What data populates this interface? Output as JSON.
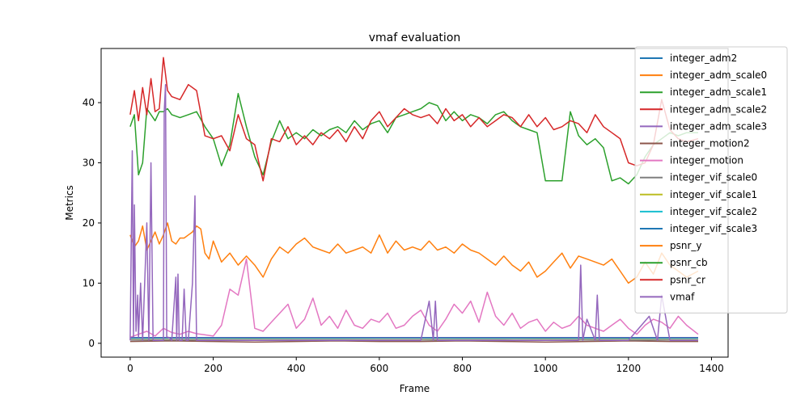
{
  "chart_data": {
    "type": "line",
    "title": "vmaf evaluation",
    "xlabel": "Frame",
    "ylabel": "Metrics",
    "xlim": [
      -70,
      1440
    ],
    "ylim": [
      -2.3,
      49.0
    ],
    "xticks": [
      0,
      200,
      400,
      600,
      800,
      1000,
      1200,
      1400
    ],
    "yticks": [
      0,
      10,
      20,
      30,
      40
    ],
    "grid": false,
    "legend_position": "top-right",
    "series": [
      {
        "name": "integer_adm2",
        "color": "#1f77b4",
        "x": [
          0,
          100,
          200,
          300,
          400,
          500,
          600,
          700,
          800,
          900,
          1000,
          1100,
          1200,
          1300,
          1368
        ],
        "y": [
          0.95,
          0.96,
          0.95,
          0.94,
          0.95,
          0.95,
          0.96,
          0.96,
          0.95,
          0.95,
          0.94,
          0.95,
          0.94,
          0.95,
          0.95
        ]
      },
      {
        "name": "integer_adm_scale0",
        "color": "#ff7f0e",
        "x": [
          0,
          100,
          200,
          300,
          400,
          500,
          600,
          700,
          800,
          900,
          1000,
          1100,
          1200,
          1300,
          1368
        ],
        "y": [
          0.9,
          0.91,
          0.9,
          0.89,
          0.9,
          0.9,
          0.91,
          0.91,
          0.9,
          0.9,
          0.89,
          0.9,
          0.89,
          0.9,
          0.9
        ]
      },
      {
        "name": "integer_adm_scale1",
        "color": "#2ca02c",
        "x": [
          0,
          100,
          200,
          300,
          400,
          500,
          600,
          700,
          800,
          900,
          1000,
          1100,
          1200,
          1300,
          1368
        ],
        "y": [
          0.92,
          0.93,
          0.92,
          0.91,
          0.92,
          0.92,
          0.93,
          0.93,
          0.92,
          0.92,
          0.91,
          0.92,
          0.91,
          0.92,
          0.92
        ]
      },
      {
        "name": "integer_adm_scale2",
        "color": "#d62728",
        "x": [
          0,
          100,
          200,
          300,
          400,
          500,
          600,
          700,
          800,
          900,
          1000,
          1100,
          1200,
          1300,
          1368
        ],
        "y": [
          0.94,
          0.95,
          0.94,
          0.93,
          0.94,
          0.94,
          0.95,
          0.95,
          0.94,
          0.94,
          0.93,
          0.94,
          0.93,
          0.94,
          0.94
        ]
      },
      {
        "name": "integer_adm_scale3",
        "color": "#9467bd",
        "x": [
          0,
          100,
          200,
          300,
          400,
          500,
          600,
          700,
          800,
          900,
          1000,
          1100,
          1200,
          1300,
          1368
        ],
        "y": [
          0.96,
          0.97,
          0.96,
          0.95,
          0.96,
          0.96,
          0.97,
          0.97,
          0.96,
          0.96,
          0.95,
          0.96,
          0.95,
          0.96,
          0.96
        ]
      },
      {
        "name": "integer_motion2",
        "color": "#8c564b",
        "x": [
          0,
          100,
          200,
          300,
          400,
          500,
          600,
          700,
          800,
          900,
          1000,
          1100,
          1200,
          1300,
          1368
        ],
        "y": [
          0.3,
          0.4,
          0.3,
          0.2,
          0.3,
          0.4,
          0.3,
          0.3,
          0.4,
          0.3,
          0.2,
          0.3,
          0.4,
          0.3,
          0.3
        ]
      },
      {
        "name": "integer_motion",
        "color": "#e377c2",
        "x": [
          0,
          20,
          40,
          60,
          80,
          100,
          120,
          140,
          160,
          180,
          200,
          220,
          240,
          260,
          280,
          300,
          320,
          340,
          360,
          380,
          400,
          420,
          440,
          460,
          480,
          500,
          520,
          540,
          560,
          580,
          600,
          620,
          640,
          660,
          680,
          700,
          720,
          740,
          760,
          780,
          800,
          820,
          840,
          860,
          880,
          900,
          920,
          940,
          960,
          980,
          1000,
          1020,
          1040,
          1060,
          1080,
          1100,
          1120,
          1140,
          1160,
          1180,
          1200,
          1220,
          1240,
          1260,
          1280,
          1300,
          1320,
          1340,
          1368
        ],
        "y": [
          1.0,
          1.5,
          2.0,
          1.2,
          2.5,
          1.8,
          1.5,
          2.0,
          1.6,
          1.4,
          1.2,
          3.0,
          9.0,
          8.0,
          14.0,
          2.5,
          2.0,
          3.5,
          5.0,
          6.5,
          2.5,
          4.0,
          7.5,
          3.0,
          4.5,
          2.5,
          5.5,
          3.0,
          2.5,
          4.0,
          3.5,
          5.0,
          2.5,
          3.0,
          4.5,
          5.5,
          3.0,
          2.0,
          4.0,
          6.5,
          5.0,
          7.0,
          3.5,
          8.5,
          4.5,
          3.0,
          5.0,
          2.5,
          3.5,
          4.0,
          2.0,
          3.5,
          2.5,
          3.0,
          4.5,
          3.0,
          2.5,
          2.0,
          3.0,
          4.0,
          2.5,
          1.5,
          3.0,
          4.0,
          3.5,
          2.5,
          4.5,
          3.0,
          1.5
        ]
      },
      {
        "name": "integer_vif_scale0",
        "color": "#7f7f7f",
        "x": [
          0,
          100,
          200,
          300,
          400,
          500,
          600,
          700,
          800,
          900,
          1000,
          1100,
          1200,
          1300,
          1368
        ],
        "y": [
          0.55,
          0.56,
          0.55,
          0.54,
          0.55,
          0.55,
          0.56,
          0.56,
          0.55,
          0.55,
          0.54,
          0.55,
          0.54,
          0.55,
          0.55
        ]
      },
      {
        "name": "integer_vif_scale1",
        "color": "#bcbd22",
        "x": [
          0,
          100,
          200,
          300,
          400,
          500,
          600,
          700,
          800,
          900,
          1000,
          1100,
          1200,
          1300,
          1368
        ],
        "y": [
          0.8,
          0.81,
          0.8,
          0.79,
          0.8,
          0.8,
          0.81,
          0.81,
          0.8,
          0.8,
          0.79,
          0.8,
          0.79,
          0.8,
          0.8
        ]
      },
      {
        "name": "integer_vif_scale2",
        "color": "#17becf",
        "x": [
          0,
          100,
          200,
          300,
          400,
          500,
          600,
          700,
          800,
          900,
          1000,
          1100,
          1200,
          1300,
          1368
        ],
        "y": [
          0.86,
          0.87,
          0.86,
          0.85,
          0.86,
          0.86,
          0.87,
          0.87,
          0.86,
          0.86,
          0.85,
          0.86,
          0.85,
          0.86,
          0.86
        ]
      },
      {
        "name": "integer_vif_scale3",
        "color": "#1f77b4",
        "x": [
          0,
          100,
          200,
          300,
          400,
          500,
          600,
          700,
          800,
          900,
          1000,
          1100,
          1200,
          1300,
          1368
        ],
        "y": [
          0.89,
          0.9,
          0.89,
          0.88,
          0.89,
          0.89,
          0.9,
          0.9,
          0.89,
          0.89,
          0.88,
          0.89,
          0.88,
          0.89,
          0.89
        ]
      },
      {
        "name": "psnr_y",
        "color": "#ff7f0e",
        "x": [
          0,
          10,
          20,
          30,
          40,
          50,
          60,
          70,
          80,
          90,
          100,
          110,
          120,
          130,
          140,
          150,
          160,
          170,
          180,
          190,
          200,
          220,
          240,
          260,
          280,
          300,
          320,
          340,
          360,
          380,
          400,
          420,
          440,
          460,
          480,
          500,
          520,
          540,
          560,
          580,
          600,
          620,
          640,
          660,
          680,
          700,
          720,
          740,
          760,
          780,
          800,
          820,
          840,
          860,
          880,
          900,
          920,
          940,
          960,
          980,
          1000,
          1020,
          1040,
          1060,
          1080,
          1100,
          1120,
          1140,
          1160,
          1180,
          1200,
          1220,
          1240,
          1260,
          1280,
          1300,
          1320,
          1340,
          1368
        ],
        "y": [
          18.0,
          16.0,
          17.0,
          19.5,
          15.5,
          17.0,
          18.5,
          16.5,
          18.0,
          20.0,
          17.0,
          16.5,
          17.5,
          17.5,
          18.0,
          18.5,
          19.5,
          19.0,
          15.0,
          14.0,
          17.0,
          13.5,
          15.0,
          13.0,
          14.5,
          13.0,
          11.0,
          14.0,
          16.0,
          15.0,
          16.5,
          17.5,
          16.0,
          15.5,
          15.0,
          16.5,
          15.0,
          15.5,
          16.0,
          15.0,
          18.0,
          15.0,
          17.0,
          15.5,
          16.0,
          15.5,
          17.0,
          15.5,
          16.0,
          15.0,
          16.5,
          15.5,
          15.0,
          14.0,
          13.0,
          14.5,
          13.0,
          12.0,
          13.5,
          11.0,
          12.0,
          13.5,
          15.0,
          12.5,
          14.5,
          14.0,
          13.5,
          13.0,
          14.0,
          12.0,
          10.0,
          11.0,
          13.5,
          11.5,
          15.0,
          13.0,
          12.0,
          11.0,
          12.0
        ]
      },
      {
        "name": "psnr_cb",
        "color": "#2ca02c",
        "x": [
          0,
          10,
          20,
          30,
          40,
          50,
          60,
          70,
          80,
          90,
          100,
          120,
          140,
          160,
          180,
          200,
          220,
          240,
          260,
          280,
          300,
          320,
          340,
          360,
          380,
          400,
          420,
          440,
          460,
          480,
          500,
          520,
          540,
          560,
          580,
          600,
          620,
          640,
          660,
          680,
          700,
          720,
          740,
          760,
          780,
          800,
          820,
          840,
          860,
          880,
          900,
          920,
          940,
          960,
          980,
          1000,
          1020,
          1040,
          1060,
          1080,
          1100,
          1120,
          1140,
          1160,
          1180,
          1200,
          1220,
          1240,
          1260,
          1280,
          1300,
          1320,
          1340,
          1368
        ],
        "y": [
          36.0,
          38.0,
          28.0,
          30.0,
          39.0,
          38.0,
          37.0,
          38.5,
          38.5,
          39.0,
          38.0,
          37.5,
          38.0,
          38.5,
          36.0,
          34.0,
          29.5,
          33.0,
          41.5,
          36.0,
          31.0,
          28.0,
          33.5,
          37.0,
          34.0,
          35.0,
          34.0,
          35.5,
          34.5,
          35.5,
          36.0,
          35.0,
          37.0,
          35.5,
          36.5,
          37.0,
          35.0,
          37.5,
          38.0,
          38.5,
          39.0,
          40.0,
          39.5,
          37.0,
          38.5,
          37.0,
          38.0,
          37.5,
          36.5,
          38.0,
          38.5,
          37.0,
          36.0,
          35.5,
          35.0,
          27.0,
          27.0,
          27.0,
          38.5,
          34.5,
          33.0,
          34.0,
          32.5,
          27.0,
          27.5,
          26.5,
          28.0,
          31.0,
          33.0,
          34.0,
          35.0,
          34.5,
          35.0,
          35.0
        ]
      },
      {
        "name": "psnr_cr",
        "color": "#d62728",
        "x": [
          0,
          10,
          20,
          30,
          40,
          50,
          60,
          70,
          80,
          90,
          100,
          120,
          140,
          160,
          180,
          200,
          220,
          240,
          260,
          280,
          300,
          320,
          340,
          360,
          380,
          400,
          420,
          440,
          460,
          480,
          500,
          520,
          540,
          560,
          580,
          600,
          620,
          640,
          660,
          680,
          700,
          720,
          740,
          760,
          780,
          800,
          820,
          840,
          860,
          880,
          900,
          920,
          940,
          960,
          980,
          1000,
          1020,
          1040,
          1060,
          1080,
          1100,
          1120,
          1140,
          1160,
          1180,
          1200,
          1220,
          1240,
          1260,
          1280,
          1300,
          1320,
          1340,
          1368
        ],
        "y": [
          38.0,
          42.0,
          37.0,
          42.5,
          38.0,
          44.0,
          38.5,
          39.0,
          47.5,
          42.0,
          41.0,
          40.5,
          43.0,
          42.0,
          34.5,
          34.0,
          34.5,
          32.0,
          38.0,
          34.0,
          33.0,
          27.0,
          34.0,
          33.5,
          36.0,
          33.0,
          34.5,
          33.0,
          35.0,
          34.0,
          35.5,
          33.5,
          36.0,
          34.0,
          37.0,
          38.5,
          36.0,
          37.5,
          39.0,
          38.0,
          37.5,
          38.0,
          36.5,
          39.0,
          37.0,
          38.0,
          36.0,
          37.5,
          36.0,
          37.0,
          38.0,
          37.5,
          36.0,
          38.0,
          36.0,
          37.5,
          35.5,
          36.0,
          37.0,
          36.5,
          35.0,
          38.0,
          36.0,
          35.0,
          34.0,
          30.0,
          29.5,
          30.0,
          33.0,
          40.5,
          35.5,
          34.0,
          33.5,
          34.0
        ]
      },
      {
        "name": "vmaf",
        "color": "#9467bd",
        "x": [
          0,
          5,
          8,
          10,
          14,
          18,
          20,
          25,
          30,
          40,
          45,
          50,
          55,
          60,
          70,
          80,
          82,
          85,
          88,
          92,
          100,
          110,
          112,
          115,
          118,
          125,
          130,
          135,
          140,
          150,
          156,
          158,
          160,
          165,
          170,
          180,
          200,
          250,
          300,
          400,
          500,
          700,
          720,
          730,
          735,
          740,
          800,
          900,
          1000,
          1080,
          1085,
          1090,
          1100,
          1120,
          1125,
          1130,
          1180,
          1200,
          1250,
          1270,
          1280,
          1300,
          1340,
          1368
        ],
        "y": [
          0.5,
          32.0,
          1.0,
          23.0,
          2.0,
          8.0,
          1.0,
          10.0,
          0.5,
          20.0,
          0.5,
          30.0,
          0.5,
          0.5,
          0.5,
          0.5,
          38.5,
          43.0,
          1.0,
          1.0,
          0.5,
          11.0,
          0.5,
          11.5,
          0.5,
          0.5,
          9.0,
          0.5,
          0.5,
          10.0,
          24.5,
          10.0,
          0.5,
          0.5,
          0.5,
          0.5,
          0.5,
          0.5,
          0.5,
          0.5,
          0.5,
          0.5,
          7.0,
          0.5,
          7.0,
          0.5,
          0.5,
          0.5,
          0.5,
          0.5,
          13.0,
          0.5,
          4.0,
          0.5,
          8.0,
          0.5,
          0.5,
          0.5,
          4.5,
          0.5,
          8.0,
          0.5,
          0.5,
          0.5
        ]
      }
    ]
  }
}
